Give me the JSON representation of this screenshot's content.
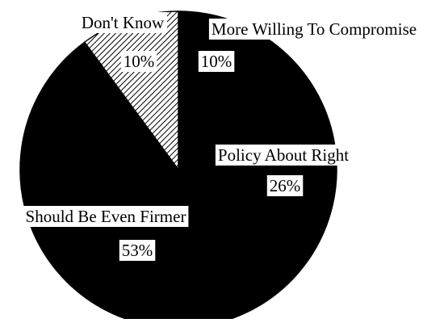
{
  "chart_data": {
    "type": "pie",
    "title": "",
    "slices": [
      {
        "label": "Don't Know",
        "value": 10,
        "value_label": "10%",
        "fill": "hatched"
      },
      {
        "label": "More Willing To Compromise",
        "value": 10,
        "value_label": "10%",
        "fill": "solid"
      },
      {
        "label": "Policy About Right",
        "value": 26,
        "value_label": "26%",
        "fill": "solid"
      },
      {
        "label": "Should Be Even Firmer",
        "value": 53,
        "value_label": "53%",
        "fill": "solid"
      }
    ],
    "colors": {
      "slice": "#000000",
      "hatch_bg": "#ffffff",
      "label_box": "#ffffff",
      "label_text": "#000000"
    }
  }
}
